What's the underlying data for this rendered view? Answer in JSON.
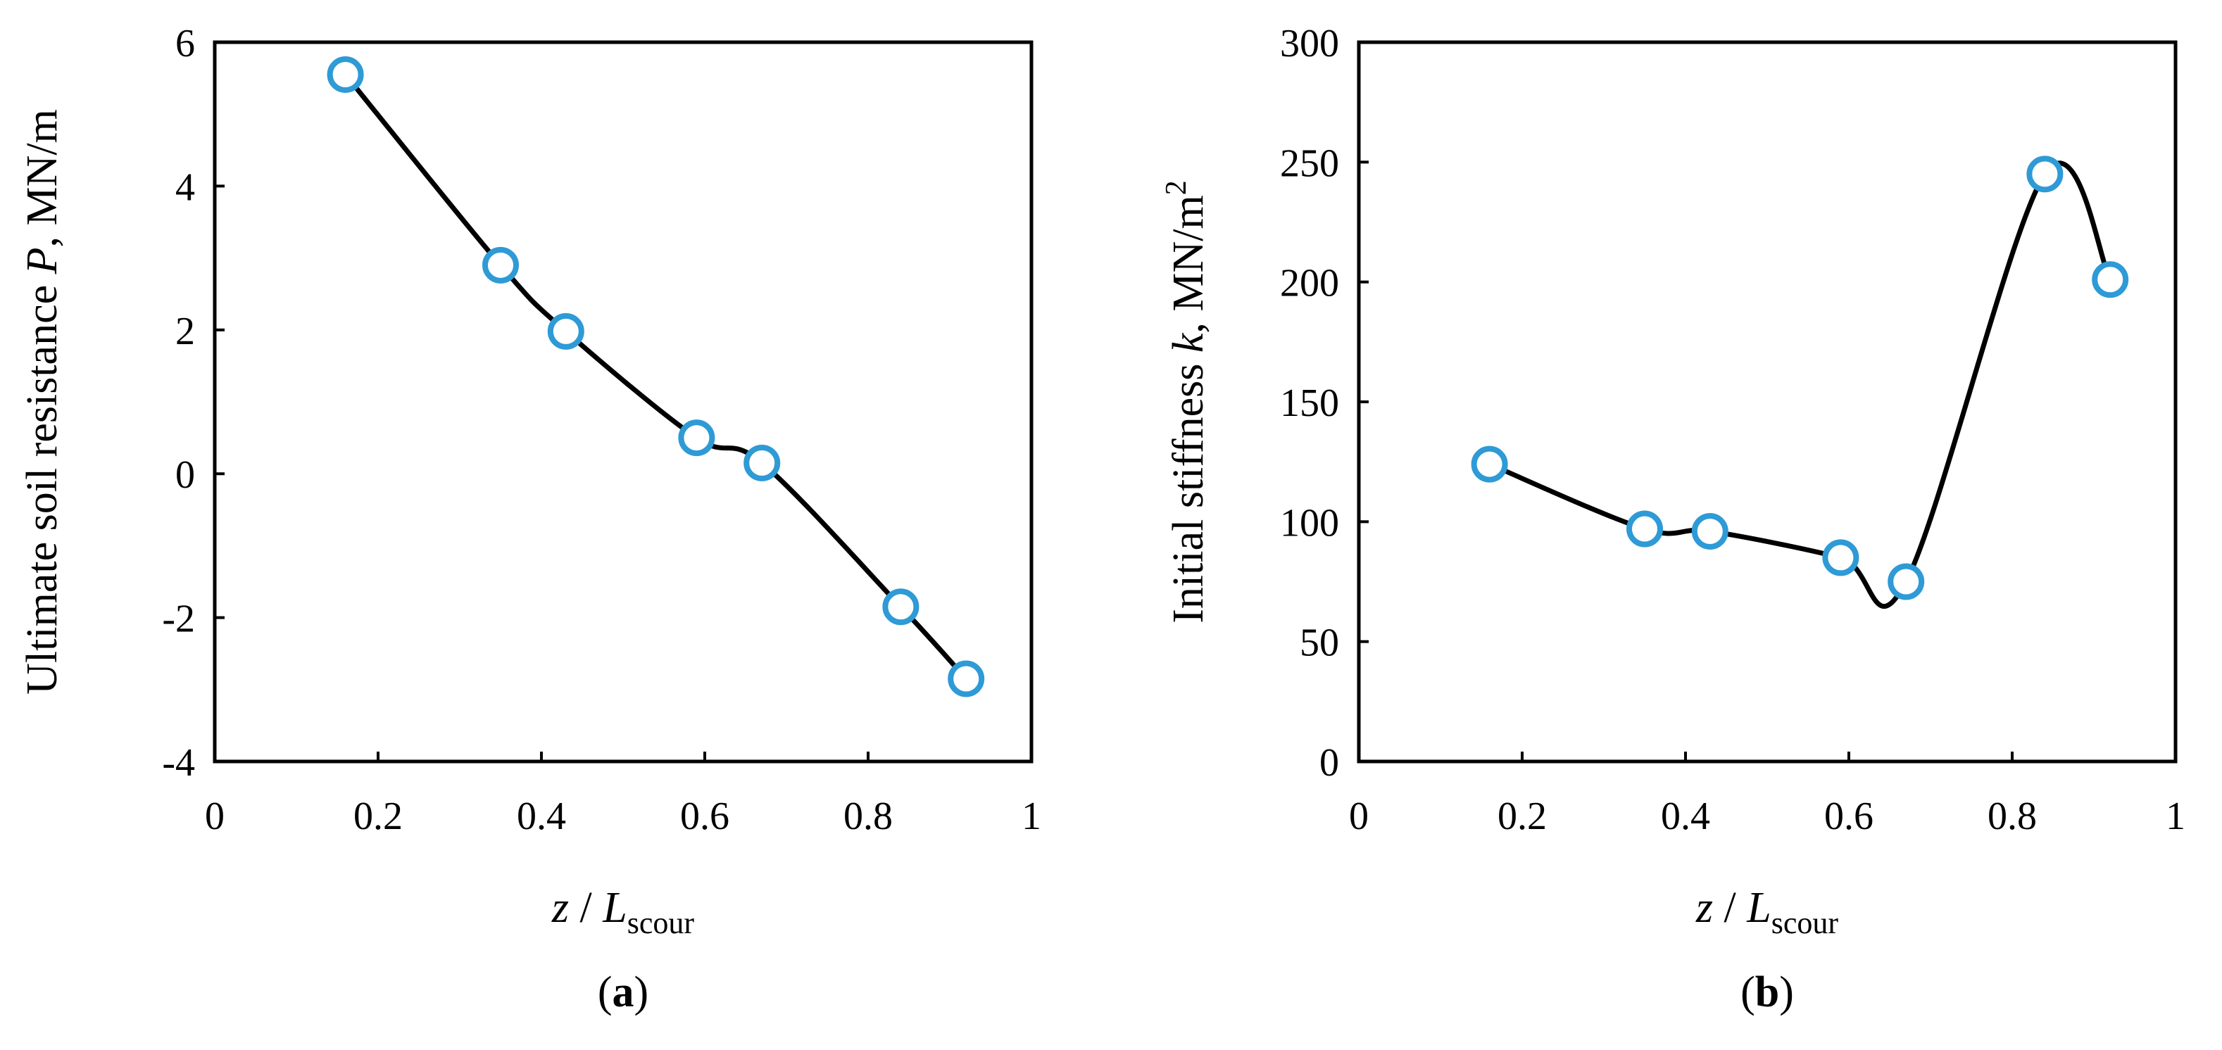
{
  "chart_data": [
    {
      "type": "line",
      "panel_label": "a",
      "xlabel_parts": [
        "z",
        " / ",
        "L",
        "scour"
      ],
      "ylabel_parts": [
        "Ultimate soil resistance ",
        "P",
        ", MN/m"
      ],
      "xlim": [
        0,
        1
      ],
      "ylim": [
        -4,
        6
      ],
      "xticks": [
        "0",
        "0.2",
        "0.4",
        "0.6",
        "0.8",
        "1"
      ],
      "yticks": [
        "-4",
        "-2",
        "0",
        "2",
        "4",
        "6"
      ],
      "grid": false,
      "series": [
        {
          "x": [
            0.16,
            0.35,
            0.43,
            0.59,
            0.67,
            0.84,
            0.92
          ],
          "y": [
            5.55,
            2.9,
            1.98,
            0.5,
            0.15,
            -1.85,
            -2.85
          ]
        }
      ]
    },
    {
      "type": "line",
      "panel_label": "b",
      "xlabel_parts": [
        "z",
        " / ",
        "L",
        "scour"
      ],
      "ylabel_parts": [
        "Initial stiffness ",
        "k",
        ", MN/m",
        "2"
      ],
      "xlim": [
        0,
        1
      ],
      "ylim": [
        0,
        300
      ],
      "xticks": [
        "0",
        "0.2",
        "0.4",
        "0.6",
        "0.8",
        "1"
      ],
      "yticks": [
        "0",
        "50",
        "100",
        "150",
        "200",
        "250",
        "300"
      ],
      "grid": false,
      "series": [
        {
          "x": [
            0.16,
            0.35,
            0.43,
            0.59,
            0.67,
            0.84,
            0.92
          ],
          "y": [
            124,
            97,
            96,
            85,
            75,
            245,
            201
          ]
        }
      ]
    }
  ],
  "colors": {
    "marker": "#2e9ad6",
    "line": "#000000"
  }
}
